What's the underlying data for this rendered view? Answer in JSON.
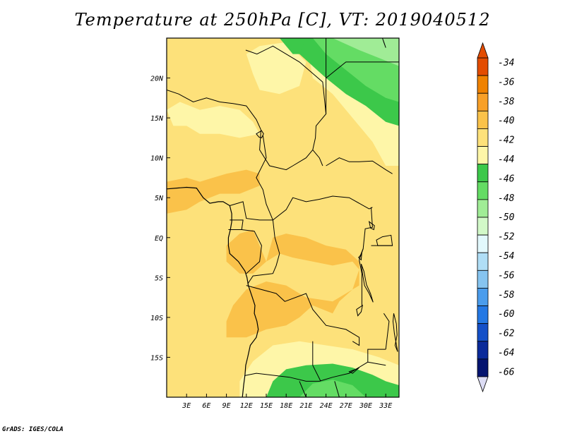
{
  "title": "Temperature at 250hPa [C], VT: 2019040512",
  "credit": "GrADS: IGES/COLA",
  "lon_ticks": [
    {
      "value": 3,
      "label": "3E"
    },
    {
      "value": 6,
      "label": "6E"
    },
    {
      "value": 9,
      "label": "9E"
    },
    {
      "value": 12,
      "label": "12E"
    },
    {
      "value": 15,
      "label": "15E"
    },
    {
      "value": 18,
      "label": "18E"
    },
    {
      "value": 21,
      "label": "21E"
    },
    {
      "value": 24,
      "label": "24E"
    },
    {
      "value": 27,
      "label": "27E"
    },
    {
      "value": 30,
      "label": "30E"
    },
    {
      "value": 33,
      "label": "33E"
    }
  ],
  "lat_ticks": [
    {
      "value": 20,
      "label": "20N"
    },
    {
      "value": 15,
      "label": "15N"
    },
    {
      "value": 10,
      "label": "10N"
    },
    {
      "value": 5,
      "label": "5N"
    },
    {
      "value": 0,
      "label": "EQ"
    },
    {
      "value": -5,
      "label": "5S"
    },
    {
      "value": -10,
      "label": "10S"
    },
    {
      "value": -15,
      "label": "15S"
    }
  ],
  "extent": {
    "lon_min": 0,
    "lon_max": 35,
    "lat_min": -20,
    "lat_max": 25
  },
  "colorbar": {
    "levels": [
      "-34",
      "-36",
      "-38",
      "-40",
      "-42",
      "-44",
      "-46",
      "-48",
      "-50",
      "-52",
      "-54",
      "-56",
      "-58",
      "-60",
      "-62",
      "-64",
      "-66"
    ],
    "colors": [
      "#e34c00",
      "#f08200",
      "#f8a028",
      "#fac24a",
      "#fde17a",
      "#fef6a8",
      "#3cc84a",
      "#64dc64",
      "#a0ec96",
      "#d2f8c8",
      "#e2f8fc",
      "#b0def6",
      "#86c4f0",
      "#4a9cec",
      "#2478e4",
      "#1450c8",
      "#0a2a9a",
      "#041470"
    ],
    "top_color": "#e34c00",
    "bottom_color": "#dcdcf4"
  },
  "regions": [
    {
      "color": "#fde17a",
      "points": [
        [
          0,
          25
        ],
        [
          35,
          25
        ],
        [
          35,
          -20
        ],
        [
          0,
          -20
        ]
      ]
    },
    {
      "color": "#fef6a8",
      "points": [
        [
          0,
          16
        ],
        [
          2,
          17
        ],
        [
          5,
          16
        ],
        [
          8,
          16.5
        ],
        [
          11,
          16
        ],
        [
          13,
          14.5
        ],
        [
          14,
          13
        ],
        [
          11,
          12.5
        ],
        [
          8,
          13
        ],
        [
          5,
          13
        ],
        [
          3,
          14
        ],
        [
          1,
          14
        ]
      ]
    },
    {
      "color": "#fef6a8",
      "points": [
        [
          12,
          23
        ],
        [
          14,
          24
        ],
        [
          18,
          24.5
        ],
        [
          21,
          22
        ],
        [
          20,
          19
        ],
        [
          17,
          18
        ],
        [
          14,
          18.5
        ],
        [
          13,
          20.5
        ]
      ]
    },
    {
      "color": "#fef6a8",
      "points": [
        [
          21,
          25
        ],
        [
          26,
          25
        ],
        [
          30,
          21
        ],
        [
          34,
          17
        ],
        [
          35,
          16
        ],
        [
          35,
          9
        ],
        [
          33,
          9
        ],
        [
          31,
          12
        ],
        [
          28,
          15
        ],
        [
          25,
          18
        ],
        [
          22,
          20
        ]
      ]
    },
    {
      "color": "#fef6a8",
      "points": [
        [
          11,
          -18
        ],
        [
          13,
          -15.5
        ],
        [
          16,
          -13.5
        ],
        [
          20,
          -13
        ],
        [
          24,
          -13.5
        ],
        [
          28,
          -14
        ],
        [
          32,
          -15
        ],
        [
          35,
          -16
        ],
        [
          35,
          -20
        ],
        [
          11,
          -20
        ]
      ]
    },
    {
      "color": "#3cc84a",
      "points": [
        [
          17,
          25
        ],
        [
          21,
          25
        ],
        [
          21,
          23
        ],
        [
          19,
          23
        ]
      ]
    },
    {
      "color": "#3cc84a",
      "points": [
        [
          20,
          23
        ],
        [
          21,
          25
        ],
        [
          35,
          25
        ],
        [
          35,
          14
        ],
        [
          33,
          14.5
        ],
        [
          30,
          16.5
        ],
        [
          27,
          18
        ],
        [
          24,
          20
        ]
      ]
    },
    {
      "color": "#64dc64",
      "points": [
        [
          22,
          25
        ],
        [
          35,
          25
        ],
        [
          35,
          17
        ],
        [
          33,
          17.5
        ],
        [
          30,
          19
        ],
        [
          27,
          21
        ],
        [
          24,
          23
        ]
      ]
    },
    {
      "color": "#a0ec96",
      "points": [
        [
          25,
          25
        ],
        [
          35,
          25
        ],
        [
          35,
          21.5
        ],
        [
          32,
          22.5
        ],
        [
          29,
          23.5
        ]
      ]
    },
    {
      "color": "#3cc84a",
      "points": [
        [
          15,
          -20
        ],
        [
          16,
          -18
        ],
        [
          18,
          -16.5
        ],
        [
          21,
          -16
        ],
        [
          25,
          -15.8
        ],
        [
          28,
          -16.3
        ],
        [
          31,
          -17.2
        ],
        [
          33,
          -18
        ],
        [
          35,
          -18.5
        ],
        [
          35,
          -20
        ]
      ]
    },
    {
      "color": "#64dc64",
      "points": [
        [
          20,
          -20
        ],
        [
          22,
          -18.3
        ],
        [
          25,
          -17.8
        ],
        [
          28,
          -18.5
        ],
        [
          30,
          -20
        ]
      ]
    },
    {
      "color": "#fac24a",
      "points": [
        [
          0,
          7
        ],
        [
          3,
          7.5
        ],
        [
          5,
          7
        ],
        [
          7,
          7.5
        ],
        [
          9,
          8
        ],
        [
          12,
          8.5
        ],
        [
          14,
          8
        ],
        [
          14,
          6.5
        ],
        [
          11,
          5.5
        ],
        [
          8,
          5.5
        ],
        [
          5,
          4.5
        ],
        [
          3,
          3.5
        ],
        [
          0,
          3
        ]
      ]
    },
    {
      "color": "#fac24a",
      "points": [
        [
          9,
          -1
        ],
        [
          11,
          0.5
        ],
        [
          13,
          1
        ],
        [
          14,
          -1
        ],
        [
          15,
          -3
        ],
        [
          13,
          -4.5
        ],
        [
          11,
          -4.5
        ],
        [
          9,
          -3
        ]
      ]
    },
    {
      "color": "#fac24a",
      "points": [
        [
          15,
          -3
        ],
        [
          16,
          0
        ],
        [
          18,
          0.5
        ],
        [
          21,
          0
        ],
        [
          24,
          -1
        ],
        [
          27,
          -1.5
        ],
        [
          29,
          -3
        ],
        [
          29,
          -6
        ],
        [
          27,
          -7
        ],
        [
          25,
          -8
        ],
        [
          21,
          -7.5
        ],
        [
          18,
          -6
        ],
        [
          15,
          -5.5
        ],
        [
          12,
          -6.5
        ],
        [
          10,
          -8.5
        ],
        [
          9,
          -10.5
        ],
        [
          9,
          -12.5
        ],
        [
          12,
          -12.5
        ],
        [
          15,
          -11.5
        ],
        [
          18,
          -11
        ],
        [
          20,
          -10
        ],
        [
          22,
          -8.5
        ],
        [
          25,
          -9.5
        ],
        [
          26,
          -8
        ],
        [
          28,
          -6.5
        ],
        [
          29,
          -4
        ],
        [
          28,
          -3
        ],
        [
          25,
          -3.5
        ],
        [
          22,
          -3
        ],
        [
          19,
          -2.5
        ],
        [
          17,
          -2
        ]
      ]
    }
  ],
  "borders": [
    [
      [
        0,
        18.5
      ],
      [
        1.8,
        18
      ],
      [
        4,
        17
      ],
      [
        6,
        17.5
      ],
      [
        8,
        17
      ],
      [
        10,
        16.8
      ],
      [
        12,
        16.5
      ],
      [
        13.5,
        14.8
      ],
      [
        14.2,
        13.5
      ]
    ],
    [
      [
        11.9,
        23.5
      ],
      [
        13.6,
        23
      ],
      [
        16,
        24
      ],
      [
        20,
        22
      ],
      [
        23.5,
        19.5
      ],
      [
        24,
        15.5
      ],
      [
        22.5,
        14
      ],
      [
        22.4,
        12.5
      ],
      [
        22,
        11
      ]
    ],
    [
      [
        24,
        25
      ],
      [
        24,
        20
      ],
      [
        24,
        15.5
      ]
    ],
    [
      [
        24,
        20
      ],
      [
        27,
        22
      ],
      [
        31.5,
        22
      ],
      [
        35,
        22
      ]
    ],
    [
      [
        14.2,
        13.5
      ],
      [
        14,
        11
      ],
      [
        15.5,
        9
      ],
      [
        18,
        8.5
      ],
      [
        19,
        9
      ],
      [
        21,
        10
      ],
      [
        22,
        11
      ]
    ],
    [
      [
        14.5,
        12.8
      ],
      [
        15,
        10
      ],
      [
        13.5,
        7.5
      ],
      [
        14.5,
        6
      ],
      [
        15,
        4.2
      ],
      [
        16,
        2.2
      ]
    ],
    [
      [
        16,
        2.2
      ],
      [
        18,
        3.5
      ],
      [
        19,
        5
      ],
      [
        21,
        4.5
      ],
      [
        23,
        4.8
      ],
      [
        25,
        5.2
      ],
      [
        27.5,
        5
      ],
      [
        30.5,
        3.6
      ],
      [
        31,
        3.8
      ]
    ],
    [
      [
        24,
        9
      ],
      [
        26,
        10
      ],
      [
        27.5,
        9.5
      ],
      [
        29,
        9.5
      ],
      [
        31,
        9.6
      ],
      [
        33,
        8.5
      ],
      [
        34,
        8
      ]
    ],
    [
      [
        22,
        11
      ],
      [
        23,
        10
      ],
      [
        23.5,
        9
      ]
    ],
    [
      [
        9.5,
        4
      ],
      [
        11.5,
        4.5
      ],
      [
        12,
        2.4
      ],
      [
        14,
        2.2
      ],
      [
        16,
        2.2
      ]
    ],
    [
      [
        9.5,
        2.2
      ],
      [
        11.5,
        2.2
      ],
      [
        11.3,
        1
      ],
      [
        9.3,
        1
      ]
    ],
    [
      [
        11.3,
        1
      ],
      [
        13.2,
        0.8
      ],
      [
        14.3,
        -1
      ],
      [
        14,
        -3
      ],
      [
        12,
        -4.5
      ]
    ],
    [
      [
        16,
        2.2
      ],
      [
        16.3,
        0
      ],
      [
        17,
        -2
      ],
      [
        16.5,
        -3.5
      ],
      [
        16,
        -4.5
      ],
      [
        13,
        -4.8
      ],
      [
        12.2,
        -5.8
      ]
    ],
    [
      [
        30.8,
        3.8
      ],
      [
        31,
        1.3
      ],
      [
        29.9,
        1.1
      ],
      [
        29.6,
        -1.4
      ],
      [
        29,
        -2.8
      ],
      [
        29.4,
        -4.5
      ],
      [
        29.4,
        -8.5
      ]
    ],
    [
      [
        30.8,
        -1
      ],
      [
        33.9,
        -1
      ],
      [
        34,
        -1
      ]
    ],
    [
      [
        12,
        -6
      ],
      [
        16.5,
        -7
      ],
      [
        17.8,
        -8
      ],
      [
        21,
        -7
      ],
      [
        22,
        -9
      ],
      [
        24,
        -11
      ],
      [
        27,
        -11.5
      ],
      [
        29,
        -12.5
      ],
      [
        29,
        -13.5
      ],
      [
        28,
        -13
      ]
    ],
    [
      [
        11.7,
        -17.3
      ],
      [
        13.5,
        -17
      ],
      [
        18.5,
        -17.5
      ],
      [
        21,
        -18
      ],
      [
        23,
        -18
      ],
      [
        25,
        -17.5
      ]
    ],
    [
      [
        22,
        -13
      ],
      [
        22,
        -16
      ],
      [
        23.2,
        -18
      ]
    ],
    [
      [
        25,
        -17.5
      ],
      [
        27.5,
        -17
      ],
      [
        30.3,
        -15.6
      ],
      [
        30.3,
        -14
      ],
      [
        33,
        -14
      ]
    ],
    [
      [
        30.3,
        -15.6
      ],
      [
        33,
        -16
      ]
    ],
    [
      [
        32.7,
        -9.5
      ],
      [
        33.5,
        -10.5
      ],
      [
        33,
        -14
      ]
    ],
    [
      [
        20,
        -18
      ],
      [
        21,
        -20
      ]
    ],
    [
      [
        25.3,
        -18
      ],
      [
        26,
        -20
      ]
    ]
  ],
  "coastline": [
    [
      [
        0,
        6.1
      ],
      [
        1.5,
        6.2
      ],
      [
        3,
        6.3
      ],
      [
        4.5,
        6.2
      ],
      [
        5.5,
        5
      ],
      [
        6.5,
        4.3
      ],
      [
        7.8,
        4.5
      ],
      [
        8.5,
        4.5
      ],
      [
        9.5,
        4
      ],
      [
        9.8,
        3
      ],
      [
        9.8,
        2
      ],
      [
        9.6,
        1
      ],
      [
        9.3,
        0
      ],
      [
        9.3,
        -1
      ],
      [
        9.5,
        -2
      ],
      [
        10.8,
        -3
      ],
      [
        11.8,
        -4.2
      ],
      [
        12.1,
        -5
      ],
      [
        12.3,
        -6
      ],
      [
        12.9,
        -7.5
      ],
      [
        13.3,
        -8.5
      ],
      [
        13.2,
        -9.5
      ],
      [
        13.6,
        -10.5
      ],
      [
        13.8,
        -11.5
      ],
      [
        13.5,
        -12.5
      ],
      [
        12.6,
        -13.5
      ],
      [
        12.2,
        -15
      ],
      [
        11.9,
        -16
      ],
      [
        11.8,
        -17.2
      ],
      [
        11.6,
        -18.5
      ],
      [
        11.4,
        -20
      ]
    ]
  ],
  "lakes": [
    [
      [
        29.3,
        -3.3
      ],
      [
        29.5,
        -4.5
      ],
      [
        29.8,
        -6
      ],
      [
        30.5,
        -7
      ],
      [
        31.1,
        -8.1
      ],
      [
        30.7,
        -7
      ],
      [
        30.1,
        -5.9
      ],
      [
        29.7,
        -4.2
      ]
    ],
    [
      [
        29.6,
        -1.4
      ],
      [
        29.2,
        -2.2
      ],
      [
        28.9,
        -2.5
      ],
      [
        29.3,
        -2.8
      ],
      [
        29.4,
        -1.8
      ]
    ],
    [
      [
        31.6,
        -0.3
      ],
      [
        32.5,
        0.1
      ],
      [
        33.8,
        0.3
      ],
      [
        34,
        -1
      ],
      [
        33,
        -1
      ],
      [
        31.8,
        -1
      ]
    ],
    [
      [
        34.2,
        -9.5
      ],
      [
        34.6,
        -10.8
      ],
      [
        34.7,
        -12.2
      ],
      [
        34.4,
        -13.5
      ],
      [
        34.8,
        -14.3
      ],
      [
        34.3,
        -12
      ],
      [
        34.1,
        -10.5
      ]
    ],
    [
      [
        29.5,
        -8.5
      ],
      [
        28.6,
        -9
      ],
      [
        28.8,
        -9.8
      ],
      [
        29.3,
        -9.3
      ]
    ],
    [
      [
        27.5,
        -16.8
      ],
      [
        28,
        -17
      ],
      [
        29,
        -16.3
      ],
      [
        28.5,
        -16.5
      ]
    ],
    [
      [
        30.5,
        2
      ],
      [
        31.3,
        1.5
      ],
      [
        31.2,
        1
      ],
      [
        30.7,
        1.2
      ]
    ],
    [
      [
        13.5,
        13
      ],
      [
        14.3,
        13.4
      ],
      [
        14.6,
        13
      ],
      [
        14.3,
        12.5
      ],
      [
        13.9,
        12.6
      ]
    ],
    [
      [
        32.5,
        25
      ],
      [
        32.7,
        24.5
      ],
      [
        33,
        23.8
      ],
      [
        32.8,
        24.3
      ]
    ]
  ]
}
